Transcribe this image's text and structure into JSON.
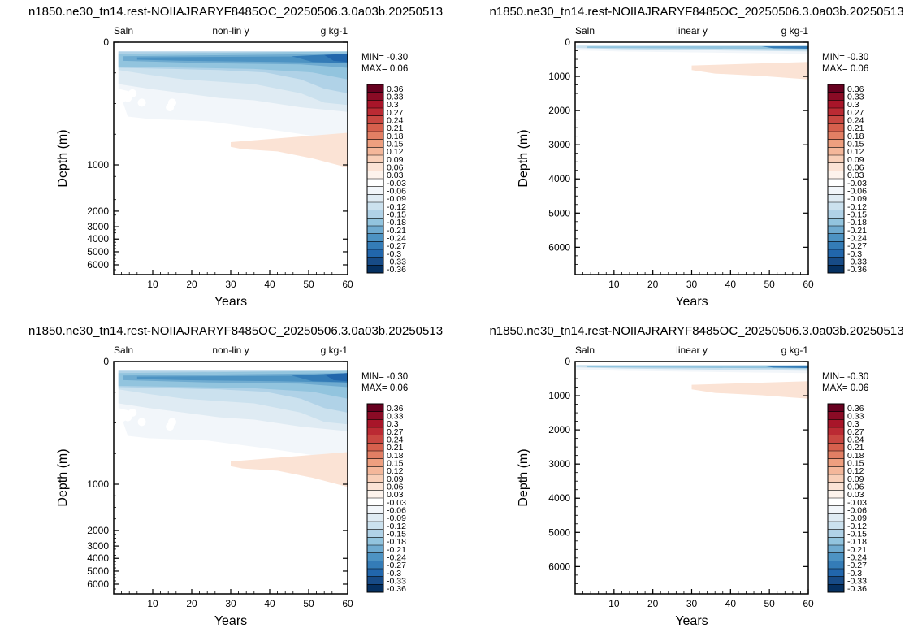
{
  "colorbar": {
    "levels": [
      "0.36",
      "0.33",
      "0.3",
      "0.27",
      "0.24",
      "0.21",
      "0.18",
      "0.15",
      "0.12",
      "0.09",
      "0.06",
      "0.03",
      "-0.03",
      "-0.06",
      "-0.09",
      "-0.12",
      "-0.15",
      "-0.18",
      "-0.21",
      "-0.24",
      "-0.27",
      "-0.3",
      "-0.33",
      "-0.36"
    ],
    "colors": [
      "#67001f",
      "#8a0b25",
      "#a81529",
      "#bb2a33",
      "#c94741",
      "#d6604d",
      "#e27f64",
      "#ee9f7f",
      "#f4b79a",
      "#f8cfb8",
      "#fbe3d5",
      "#fdf3ec",
      "#ffffff",
      "#f2f6fa",
      "#dfebf3",
      "#cbe1ee",
      "#b0d2e7",
      "#92c4de",
      "#6fabd0",
      "#4d93c3",
      "#347cb7",
      "#2166ac",
      "#174b87",
      "#053061"
    ]
  },
  "panels": [
    {
      "title": "n1850.ne30_tn14.rest-NOIIAJRARYF8485OC_20250506.3.0a03b.20250513",
      "left_label": "Saln",
      "center_label": "non-lin y",
      "right_label": "g kg-1",
      "min_text": "MIN= -0.30",
      "max_text": "MAX=  0.06",
      "xlabel": "Years",
      "ylabel": "Depth (m)"
    },
    {
      "title": "n1850.ne30_tn14.rest-NOIIAJRARYF8485OC_20250506.3.0a03b.20250513",
      "left_label": "Saln",
      "center_label": "linear y",
      "right_label": "g kg-1",
      "min_text": "MIN= -0.30",
      "max_text": "MAX=  0.06",
      "xlabel": "Years",
      "ylabel": "Depth (m)"
    },
    {
      "title": "n1850.ne30_tn14.rest-NOIIAJRARYF8485OC_20250506.3.0a03b.20250513",
      "left_label": "Saln",
      "center_label": "non-lin y",
      "right_label": "g kg-1",
      "min_text": "MIN= -0.30",
      "max_text": "MAX=  0.06",
      "xlabel": "Years",
      "ylabel": "Depth (m)"
    },
    {
      "title": "n1850.ne30_tn14.rest-NOIIAJRARYF8485OC_20250506.3.0a03b.20250513",
      "left_label": "Saln",
      "center_label": "linear y",
      "right_label": "g kg-1",
      "min_text": "MIN= -0.30",
      "max_text": "MAX=  0.06",
      "xlabel": "Years",
      "ylabel": "Depth (m)"
    }
  ],
  "chart_data": [
    {
      "type": "heatmap",
      "variable": "Saln",
      "units": "g kg-1",
      "x_range": [
        0,
        60
      ],
      "x_ticks": [
        10,
        20,
        30,
        40,
        50,
        60
      ],
      "y_scale": "non-linear",
      "y_ticks": [
        0,
        1000,
        2000,
        3000,
        4000,
        5000,
        6000
      ],
      "min": -0.3,
      "max": 0.06,
      "xlabel": "Years",
      "ylabel": "Depth (m)"
    },
    {
      "type": "heatmap",
      "variable": "Saln",
      "units": "g kg-1",
      "x_range": [
        0,
        60
      ],
      "x_ticks": [
        10,
        20,
        30,
        40,
        50,
        60
      ],
      "y_scale": "linear",
      "y_ticks": [
        0,
        1000,
        2000,
        3000,
        4000,
        5000,
        6000
      ],
      "min": -0.3,
      "max": 0.06,
      "xlabel": "Years",
      "ylabel": "Depth (m)"
    },
    {
      "type": "heatmap",
      "variable": "Saln",
      "units": "g kg-1",
      "x_range": [
        0,
        60
      ],
      "x_ticks": [
        10,
        20,
        30,
        40,
        50,
        60
      ],
      "y_scale": "non-linear",
      "y_ticks": [
        0,
        1000,
        2000,
        3000,
        4000,
        5000,
        6000
      ],
      "min": -0.3,
      "max": 0.06,
      "xlabel": "Years",
      "ylabel": "Depth (m)"
    },
    {
      "type": "heatmap",
      "variable": "Saln",
      "units": "g kg-1",
      "x_range": [
        0,
        60
      ],
      "x_ticks": [
        10,
        20,
        30,
        40,
        50,
        60
      ],
      "y_scale": "linear",
      "y_ticks": [
        0,
        1000,
        2000,
        3000,
        4000,
        5000,
        6000
      ],
      "min": -0.3,
      "max": 0.06,
      "xlabel": "Years",
      "ylabel": "Depth (m)"
    }
  ]
}
